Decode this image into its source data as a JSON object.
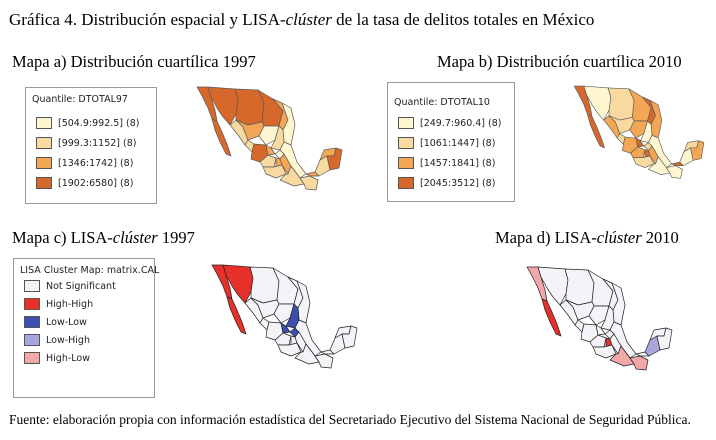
{
  "figure_title": {
    "prefix": "Gráfica 4. Distribución espacial y LISA-",
    "italic": "clúster",
    "suffix": " de la tasa de delitos totales en México"
  },
  "maps": [
    {
      "id": "a",
      "title_prefix": "Mapa a) Distribución cuartílica 1997",
      "title_italic": "",
      "title_suffix": ""
    },
    {
      "id": "b",
      "title_prefix": "Mapa b) Distribución cuartílica 2010",
      "title_italic": "",
      "title_suffix": ""
    },
    {
      "id": "c",
      "title_prefix": "Mapa c) LISA-",
      "title_italic": "clúster",
      "title_suffix": " 1997"
    },
    {
      "id": "d",
      "title_prefix": "Mapa d) LISA-",
      "title_italic": "clúster",
      "title_suffix": " 2010"
    }
  ],
  "legend_a": {
    "title": "Quantile: DTOTAL97",
    "items": [
      {
        "label": "[504.9:992.5]",
        "count": "(8)",
        "color": "#fdf6d0"
      },
      {
        "label": "[999.3:1152]",
        "count": "(8)",
        "color": "#f8d9a0"
      },
      {
        "label": "[1346:1742]",
        "count": "(8)",
        "color": "#f3a654"
      },
      {
        "label": "[1902:6580]",
        "count": "(8)",
        "color": "#d5682a"
      }
    ]
  },
  "legend_b": {
    "title": "Quantile: DTOTAL10",
    "items": [
      {
        "label": "[249.7:960.4]",
        "count": "(8)",
        "color": "#fdf6d0"
      },
      {
        "label": "[1061:1447]",
        "count": "(8)",
        "color": "#f8d9a0"
      },
      {
        "label": "[1457:1841]",
        "count": "(8)",
        "color": "#f3a654"
      },
      {
        "label": "[2045:3512]",
        "count": "(8)",
        "color": "#d5682a"
      }
    ]
  },
  "legend_lisa": {
    "title": "LISA Cluster Map: matrix.CAL",
    "items": [
      {
        "label": "Not Significant",
        "color": "#f4f4f8"
      },
      {
        "label": "High-High",
        "color": "#e8302a"
      },
      {
        "label": "Low-Low",
        "color": "#3a4fb0"
      },
      {
        "label": "Low-High",
        "color": "#a8a6dc"
      },
      {
        "label": "High-Low",
        "color": "#f2a7a9"
      }
    ]
  },
  "source": "Fuente: elaboración propia con información estadística del Secretariado Ejecutivo del Sistema Nacional de Seguridad Pública."
}
